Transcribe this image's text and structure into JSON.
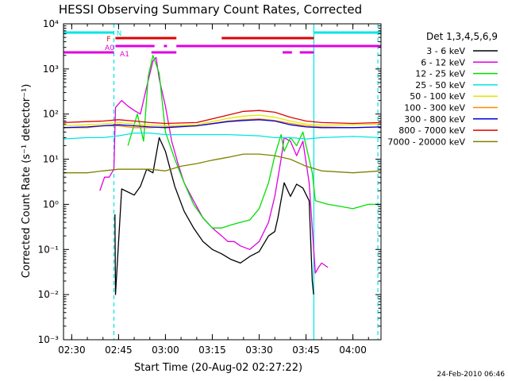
{
  "chart_data": {
    "type": "line",
    "title": "HESSI Observing Summary Count Rates, Corrected",
    "xlabel": "Start Time (20-Aug-02 02:27:22)",
    "ylabel": "Corrected Count Rate (s⁻¹ detector⁻¹)",
    "yscale": "log",
    "xlim": [
      "02:27:22",
      "04:09:00"
    ],
    "ylim": [
      0.001,
      10000
    ],
    "x_ticks": [
      "02:30",
      "02:45",
      "03:00",
      "03:15",
      "03:30",
      "03:45",
      "04:00"
    ],
    "y_ticks": [
      "10⁻³",
      "10⁻²",
      "10⁻¹",
      "10⁰",
      "10¹",
      "10²",
      "10³",
      "10⁴"
    ],
    "legend_title": "Det 1,3,4,5,6,9",
    "legend_position": "right",
    "footer": "24-Feb-2010 06:46",
    "flags": [
      {
        "label": "N",
        "color": "#00e5e5",
        "segments": [
          [
            "02:27:22",
            "02:43:30"
          ],
          [
            "03:47:30",
            "04:09:00"
          ]
        ]
      },
      {
        "label": "F",
        "color": "#e00000",
        "segments": [
          [
            "02:44:00",
            "03:03:30"
          ],
          [
            "03:18:00",
            "03:47:30"
          ]
        ]
      },
      {
        "label": "A0",
        "color": "#e000e0",
        "segments": [
          [
            "02:44:00",
            "02:56:30"
          ],
          [
            "02:59:30",
            "03:00:30"
          ],
          [
            "03:03:30",
            "04:09:00"
          ]
        ]
      },
      {
        "label": "A1",
        "color": "#e000e0",
        "segments": [
          [
            "02:27:22",
            "02:43:30"
          ],
          [
            "02:55:30",
            "03:03:30"
          ],
          [
            "03:37:30",
            "03:40:30"
          ],
          [
            "03:43:00",
            "03:47:30"
          ]
        ]
      }
    ],
    "attenuator_lines": [
      {
        "time": "02:27:22",
        "style": "solid"
      },
      {
        "time": "02:43:30",
        "style": "dashed"
      },
      {
        "time": "03:47:30",
        "style": "solid"
      },
      {
        "time": "04:08:00",
        "style": "dashed"
      }
    ],
    "series": [
      {
        "name": "3 - 6 keV",
        "color": "#000000",
        "x": [
          "02:27:22",
          "02:29:00",
          "02:43:50",
          "02:44:00",
          "02:46:00",
          "02:50:00",
          "02:52:00",
          "02:54:00",
          "02:56:00",
          "02:58:00",
          "03:00:00",
          "03:03:00",
          "03:06:00",
          "03:09:00",
          "03:12:00",
          "03:15:00",
          "03:18:00",
          "03:21:00",
          "03:24:00",
          "03:27:00",
          "03:30:00",
          "03:33:00",
          "03:35:00",
          "03:36:00",
          "03:38:00",
          "03:40:00",
          "03:42:00",
          "03:44:00",
          "03:46:00",
          "03:47:00",
          "03:47:25"
        ],
        "y": [
          null,
          null,
          0.6,
          0.01,
          2.2,
          1.6,
          2.5,
          6,
          5,
          30,
          15,
          2.5,
          0.7,
          0.3,
          0.15,
          0.1,
          0.08,
          0.06,
          0.05,
          0.07,
          0.09,
          0.2,
          0.25,
          0.5,
          3,
          1.5,
          2.8,
          2.3,
          1.2,
          0.02,
          0.01
        ]
      },
      {
        "name": "6 - 12 keV",
        "color": "#e000e0",
        "x": [
          "02:27:22",
          "02:36:00",
          "02:39:00",
          "02:40:30",
          "02:42:00",
          "02:43:30",
          "02:44:00",
          "02:46:00",
          "02:48:00",
          "02:50:00",
          "02:52:00",
          "02:54:00",
          "02:56:00",
          "02:57:00",
          "02:58:00",
          "03:00:00",
          "03:02:00",
          "03:04:00",
          "03:06:00",
          "03:09:00",
          "03:12:00",
          "03:15:00",
          "03:18:00",
          "03:20:00",
          "03:22:00",
          "03:24:00",
          "03:27:00",
          "03:30:00",
          "03:33:00",
          "03:35:00",
          "03:37:00",
          "03:38:00",
          "03:40:00",
          "03:42:00",
          "03:44:00",
          "03:46:00",
          "03:47:00",
          "03:48:00",
          "03:49:00",
          "03:50:00",
          "03:52:00"
        ],
        "y": [
          null,
          null,
          2,
          4,
          4,
          6,
          140,
          200,
          150,
          120,
          100,
          400,
          1500,
          1800,
          600,
          150,
          25,
          8,
          3,
          1.2,
          0.5,
          0.3,
          0.2,
          0.15,
          0.15,
          0.12,
          0.1,
          0.15,
          0.4,
          1.5,
          10,
          30,
          25,
          12,
          25,
          3,
          0.3,
          0.03,
          0.04,
          0.05,
          0.04
        ]
      },
      {
        "name": "12 - 25 keV",
        "color": "#00e000",
        "x": [
          "02:27:22",
          "02:40:00",
          "02:44:00",
          "02:48:00",
          "02:51:00",
          "02:53:00",
          "02:54:30",
          "02:56:00",
          "02:58:00",
          "03:00:00",
          "03:03:00",
          "03:06:00",
          "03:09:00",
          "03:12:00",
          "03:15:00",
          "03:18:00",
          "03:21:00",
          "03:24:00",
          "03:27:00",
          "03:30:00",
          "03:33:00",
          "03:35:00",
          "03:37:00",
          "03:38:00",
          "03:40:00",
          "03:42:00",
          "03:44:00",
          "03:46:00",
          "03:47:00",
          "03:48:00",
          "03:52:00",
          "03:56:00",
          "04:00:00",
          "04:05:00",
          "04:09:00"
        ],
        "y": [
          null,
          null,
          null,
          20,
          100,
          25,
          700,
          2000,
          800,
          40,
          10,
          3,
          1,
          0.5,
          0.3,
          0.3,
          0.35,
          0.4,
          0.45,
          0.8,
          3,
          12,
          35,
          15,
          30,
          20,
          40,
          10,
          5,
          1.2,
          1,
          0.9,
          0.8,
          1,
          1
        ]
      },
      {
        "name": "25 - 50 keV",
        "color": "#00e5e5",
        "x": [
          "02:27:22",
          "02:35:00",
          "02:40:00",
          "02:45:00",
          "02:50:00",
          "02:55:00",
          "03:00:00",
          "03:10:00",
          "03:20:00",
          "03:30:00",
          "03:35:00",
          "03:40:00",
          "03:45:00",
          "03:50:00",
          "04:00:00",
          "04:09:00"
        ],
        "y": [
          28,
          30,
          30,
          33,
          38,
          38,
          35,
          35,
          35,
          33,
          30,
          30,
          28,
          30,
          32,
          30
        ]
      },
      {
        "name": "50 - 100 keV",
        "color": "#e5e500",
        "x": [
          "02:27:22",
          "02:35:00",
          "02:40:00",
          "02:45:00",
          "02:50:00",
          "02:55:00",
          "03:00:00",
          "03:10:00",
          "03:20:00",
          "03:25:00",
          "03:30:00",
          "03:35:00",
          "03:40:00",
          "03:45:00",
          "03:50:00",
          "04:00:00",
          "04:09:00"
        ],
        "y": [
          55,
          58,
          60,
          65,
          60,
          57,
          55,
          58,
          80,
          90,
          95,
          85,
          70,
          60,
          57,
          58,
          60
        ]
      },
      {
        "name": "100 - 300 keV",
        "color": "#ff8c00",
        "x": [
          "02:27:22",
          "02:35:00",
          "02:40:00",
          "02:45:00",
          "02:50:00",
          "02:55:00",
          "03:00:00",
          "03:10:00",
          "03:20:00",
          "03:25:00",
          "03:30:00",
          "03:35:00",
          "03:40:00",
          "03:45:00",
          "03:50:00",
          "04:00:00",
          "04:09:00"
        ],
        "y": [
          50,
          50,
          55,
          55,
          50,
          50,
          52,
          55,
          70,
          75,
          78,
          72,
          62,
          55,
          52,
          50,
          52
        ]
      },
      {
        "name": "300 - 800 keV",
        "color": "#0000e0",
        "x": [
          "02:27:22",
          "02:35:00",
          "02:40:00",
          "02:45:00",
          "02:50:00",
          "02:55:00",
          "03:00:00",
          "03:10:00",
          "03:20:00",
          "03:25:00",
          "03:30:00",
          "03:35:00",
          "03:40:00",
          "03:45:00",
          "03:50:00",
          "04:00:00",
          "04:09:00"
        ],
        "y": [
          50,
          52,
          55,
          58,
          55,
          52,
          50,
          55,
          68,
          72,
          75,
          70,
          58,
          52,
          50,
          50,
          52
        ]
      },
      {
        "name": "800 - 7000 keV",
        "color": "#e00000",
        "x": [
          "02:27:22",
          "02:35:00",
          "02:40:00",
          "02:45:00",
          "02:50:00",
          "02:55:00",
          "03:00:00",
          "03:10:00",
          "03:20:00",
          "03:25:00",
          "03:30:00",
          "03:35:00",
          "03:40:00",
          "03:45:00",
          "03:50:00",
          "04:00:00",
          "04:09:00"
        ],
        "y": [
          65,
          68,
          70,
          75,
          70,
          65,
          62,
          65,
          95,
          115,
          120,
          110,
          85,
          70,
          65,
          62,
          65
        ]
      },
      {
        "name": "7000 - 20000 keV",
        "color": "#808000",
        "x": [
          "02:27:22",
          "02:35:00",
          "02:40:00",
          "02:45:00",
          "02:50:00",
          "02:55:00",
          "03:00:00",
          "03:05:00",
          "03:10:00",
          "03:15:00",
          "03:20:00",
          "03:25:00",
          "03:30:00",
          "03:35:00",
          "03:40:00",
          "03:45:00",
          "03:50:00",
          "04:00:00",
          "04:09:00"
        ],
        "y": [
          5,
          5,
          5.5,
          6,
          6,
          6,
          5.5,
          7,
          8,
          9.5,
          11,
          13,
          13,
          12,
          10,
          7,
          5.5,
          5,
          5.5
        ]
      }
    ]
  }
}
